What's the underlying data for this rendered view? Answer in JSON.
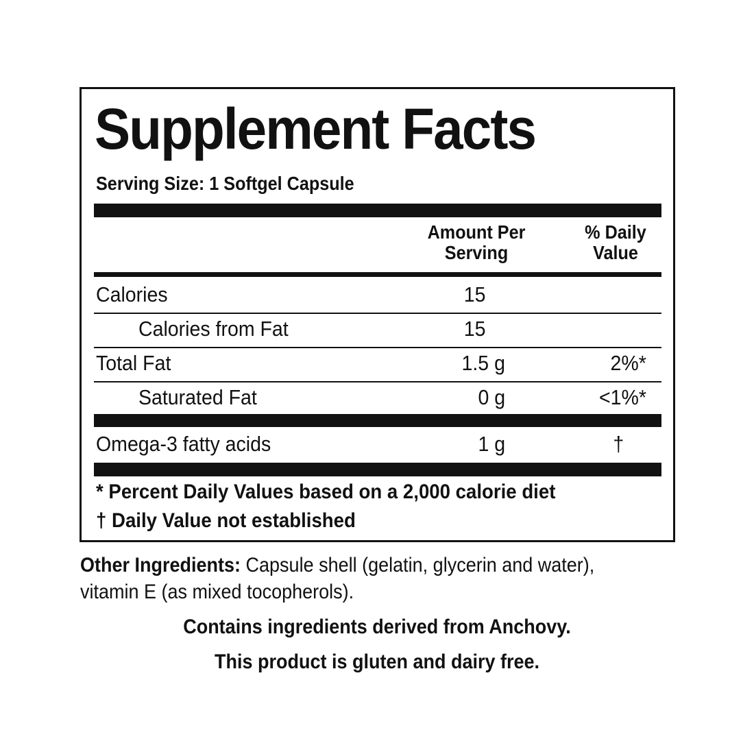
{
  "title": "Supplement Facts",
  "serving_size": "Serving Size: 1 Softgel Capsule",
  "headers": {
    "amount_line1": "Amount Per",
    "amount_line2": "Serving",
    "dv_line1": "% Daily",
    "dv_line2": "Value"
  },
  "rows": [
    {
      "label": "Calories",
      "amount": "15",
      "dv": ""
    },
    {
      "label": "Calories from Fat",
      "amount": "15",
      "dv": ""
    },
    {
      "label": "Total Fat",
      "amount": "1.5 g",
      "dv": "2%*"
    },
    {
      "label": "Saturated Fat",
      "amount": "0 g",
      "dv": "<1%*"
    },
    {
      "label": "Omega-3 fatty acids",
      "amount": "1 g",
      "dv": "†"
    }
  ],
  "footnotes": [
    "* Percent Daily Values based on a 2,000 calorie diet",
    "† Daily Value not established"
  ],
  "other_ingredients": {
    "label": "Other Ingredients:",
    "text1": " Capsule shell (gelatin, glycerin and water),",
    "text2": "vitamin E (as mixed tocopherols)."
  },
  "statements": [
    "Contains ingredients derived from Anchovy.",
    "This product is gluten and dairy free."
  ]
}
